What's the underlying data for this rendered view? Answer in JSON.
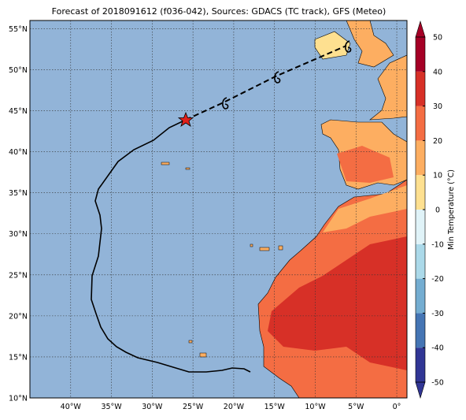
{
  "map": {
    "title": "Forecast of 2018091612 (f036-042), Sources: GDACS (TC track), GFS (Meteo)",
    "xlim": [
      -45,
      1.25
    ],
    "ylim": [
      10,
      56
    ],
    "xticks": [
      {
        "value": -40,
        "label": "40°W"
      },
      {
        "value": -35,
        "label": "35°W"
      },
      {
        "value": -30,
        "label": "30°W"
      },
      {
        "value": -25,
        "label": "25°W"
      },
      {
        "value": -20,
        "label": "20°W"
      },
      {
        "value": -15,
        "label": "15°W"
      },
      {
        "value": -10,
        "label": "10°W"
      },
      {
        "value": -5,
        "label": "5°W"
      },
      {
        "value": 0,
        "label": "0°"
      }
    ],
    "yticks": [
      {
        "value": 10,
        "label": "10°N"
      },
      {
        "value": 15,
        "label": "15°N"
      },
      {
        "value": 20,
        "label": "20°N"
      },
      {
        "value": 25,
        "label": "25°N"
      },
      {
        "value": 30,
        "label": "30°N"
      },
      {
        "value": 35,
        "label": "35°N"
      },
      {
        "value": 40,
        "label": "40°N"
      },
      {
        "value": 45,
        "label": "45°N"
      },
      {
        "value": 50,
        "label": "50°N"
      },
      {
        "value": 55,
        "label": "55°N"
      }
    ],
    "colorbar": {
      "label": "Min Temperature (°C)",
      "ticks": [
        -50,
        -40,
        -30,
        -20,
        -10,
        0,
        10,
        20,
        30,
        40,
        50
      ],
      "colors": [
        "#313695",
        "#4575b4",
        "#74add1",
        "#abd9e9",
        "#e0f3f8",
        "#fee090",
        "#fdae61",
        "#f46d43",
        "#d73027",
        "#a50026"
      ]
    }
  }
}
